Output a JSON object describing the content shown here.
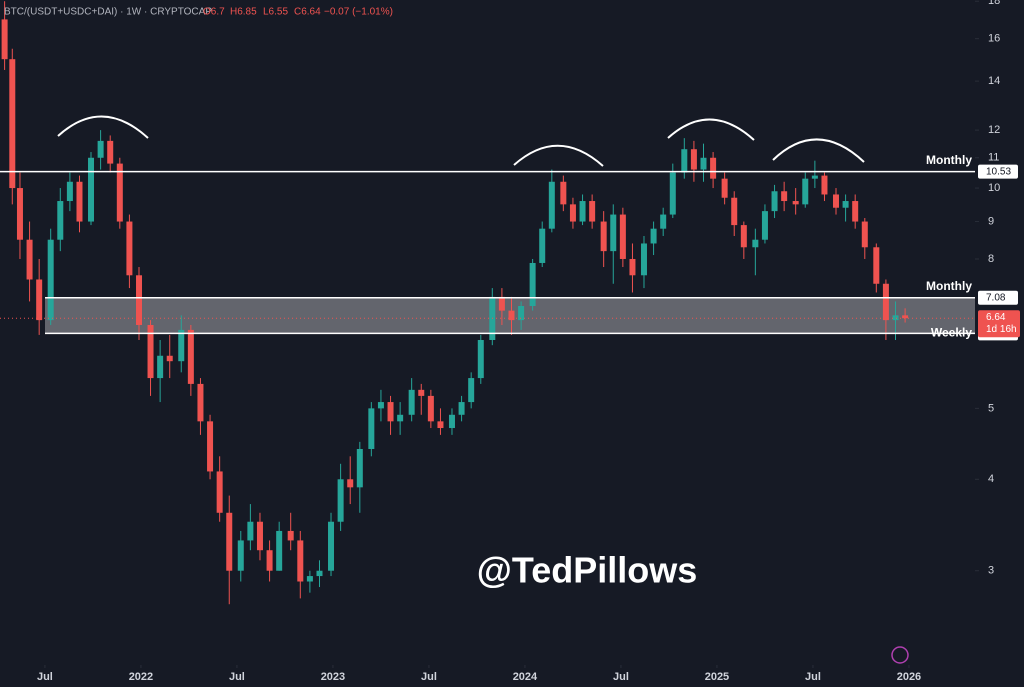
{
  "header": {
    "symbol": "BTC/(USDT+USDC+DAI) · 1W · CRYPTOCAP",
    "open": "O6.7",
    "high": "H6.85",
    "low": "L6.55",
    "close": "C6.64",
    "change": "−0.07 (−1.01%)"
  },
  "watermark": "@TedPillows",
  "chart_data": {
    "type": "candlestick",
    "log_scale": true,
    "up_color": "#26a69a",
    "down_color": "#ef5350",
    "x": [
      2021.29,
      2021.33,
      2021.37,
      2021.42,
      2021.47,
      2021.53,
      2021.58,
      2021.63,
      2021.68,
      2021.74,
      2021.79,
      2021.84,
      2021.89,
      2021.94,
      2021.99,
      2022.05,
      2022.1,
      2022.15,
      2022.21,
      2022.26,
      2022.31,
      2022.36,
      2022.41,
      2022.46,
      2022.52,
      2022.57,
      2022.62,
      2022.67,
      2022.72,
      2022.78,
      2022.83,
      2022.88,
      2022.93,
      2022.99,
      2023.04,
      2023.09,
      2023.14,
      2023.2,
      2023.25,
      2023.3,
      2023.35,
      2023.41,
      2023.46,
      2023.51,
      2023.56,
      2023.62,
      2023.67,
      2023.72,
      2023.77,
      2023.83,
      2023.88,
      2023.93,
      2023.98,
      2024.04,
      2024.09,
      2024.14,
      2024.2,
      2024.25,
      2024.3,
      2024.35,
      2024.41,
      2024.46,
      2024.51,
      2024.56,
      2024.62,
      2024.67,
      2024.72,
      2024.77,
      2024.83,
      2024.88,
      2024.93,
      2024.98,
      2025.04,
      2025.09,
      2025.14,
      2025.2,
      2025.25,
      2025.3,
      2025.35,
      2025.41,
      2025.46,
      2025.51,
      2025.56,
      2025.62,
      2025.67,
      2025.72,
      2025.77,
      2025.83,
      2025.88,
      2025.93,
      2025.98
    ],
    "open": [
      17,
      15,
      10,
      8.5,
      7.5,
      6.6,
      8.5,
      9.6,
      10.2,
      9,
      11,
      11.6,
      10.8,
      9,
      7.6,
      6.5,
      5.5,
      5.9,
      5.8,
      6.4,
      5.4,
      4.8,
      4.1,
      3.6,
      3.0,
      3.3,
      3.5,
      3.2,
      3.0,
      3.4,
      3.3,
      2.9,
      2.95,
      3.0,
      3.5,
      4.0,
      3.9,
      4.4,
      5.0,
      5.1,
      4.8,
      4.9,
      5.3,
      5.2,
      4.8,
      4.7,
      4.9,
      5.1,
      5.5,
      6.2,
      7.1,
      6.8,
      6.6,
      6.9,
      7.9,
      8.8,
      10.2,
      9.5,
      9.0,
      9.6,
      9.0,
      8.2,
      9.2,
      8.0,
      7.6,
      8.4,
      8.8,
      9.2,
      10.5,
      11.3,
      10.6,
      11.0,
      10.3,
      9.7,
      8.9,
      8.3,
      8.5,
      9.3,
      9.9,
      9.6,
      9.5,
      10.3,
      10.4,
      9.8,
      9.4,
      9.6,
      9.0,
      8.3,
      7.4,
      6.6,
      6.7
    ],
    "high": [
      18,
      15.5,
      10.5,
      9,
      8,
      8.8,
      10,
      10.5,
      10.4,
      11.2,
      12,
      11.8,
      11,
      9.2,
      7.8,
      6.6,
      6.2,
      6.3,
      6.7,
      6.5,
      5.5,
      4.9,
      4.3,
      3.8,
      3.4,
      3.7,
      3.6,
      3.3,
      3.5,
      3.6,
      3.4,
      3.0,
      3.1,
      3.6,
      4.2,
      4.3,
      4.5,
      5.1,
      5.3,
      5.2,
      5.1,
      5.5,
      5.4,
      5.3,
      5.0,
      5.0,
      5.2,
      5.6,
      6.3,
      7.3,
      7.3,
      7.1,
      7.0,
      8.0,
      9.0,
      10.6,
      10.4,
      9.7,
      9.8,
      9.8,
      9.3,
      9.5,
      9.4,
      8.4,
      8.6,
      9.0,
      9.4,
      10.8,
      11.7,
      11.6,
      11.5,
      11.2,
      10.5,
      9.9,
      9.0,
      8.8,
      9.5,
      10.1,
      10.2,
      10.0,
      10.5,
      10.9,
      10.5,
      10.0,
      9.8,
      9.8,
      9.1,
      8.4,
      7.5,
      7.0,
      6.85
    ],
    "low": [
      14.5,
      9.5,
      8,
      7,
      6.3,
      6.5,
      8.2,
      9.3,
      8.7,
      8.9,
      10.6,
      10.5,
      8.8,
      7.3,
      6.2,
      5.2,
      5.1,
      5.5,
      5.6,
      5.2,
      4.6,
      4.0,
      3.5,
      2.7,
      2.9,
      3.2,
      3.1,
      2.9,
      3.0,
      3.2,
      2.75,
      2.8,
      2.85,
      2.95,
      3.4,
      3.7,
      3.6,
      4.3,
      4.8,
      4.6,
      4.6,
      4.8,
      4.9,
      4.7,
      4.6,
      4.6,
      4.8,
      5.0,
      5.4,
      6.1,
      6.5,
      6.3,
      6.4,
      6.8,
      7.8,
      8.7,
      9.3,
      8.8,
      8.9,
      8.8,
      7.8,
      7.4,
      7.8,
      7.2,
      7.3,
      8.1,
      8.6,
      9.1,
      10.3,
      10.2,
      10.2,
      10.0,
      9.5,
      8.6,
      8.0,
      7.6,
      8.4,
      9.1,
      9.3,
      9.2,
      9.4,
      10.0,
      9.6,
      9.2,
      9.0,
      8.8,
      8.0,
      7.2,
      6.2,
      6.2,
      6.55
    ],
    "close": [
      15,
      10,
      8.5,
      7.5,
      6.6,
      8.5,
      9.6,
      10.2,
      9,
      11,
      11.6,
      10.8,
      9,
      7.6,
      6.5,
      5.5,
      5.9,
      5.8,
      6.4,
      5.4,
      4.8,
      4.1,
      3.6,
      3.0,
      3.3,
      3.5,
      3.2,
      3.0,
      3.4,
      3.3,
      2.9,
      2.95,
      3.0,
      3.5,
      4.0,
      3.9,
      4.4,
      5.0,
      5.1,
      4.8,
      4.9,
      5.3,
      5.2,
      4.8,
      4.7,
      4.9,
      5.1,
      5.5,
      6.2,
      7.1,
      6.8,
      6.6,
      6.9,
      7.9,
      8.8,
      10.2,
      9.5,
      9.0,
      9.6,
      9.0,
      8.2,
      9.2,
      8.0,
      7.6,
      8.4,
      8.8,
      9.2,
      10.5,
      11.3,
      10.6,
      11.0,
      10.3,
      9.7,
      8.9,
      8.3,
      8.5,
      9.3,
      9.9,
      9.6,
      9.5,
      10.3,
      10.4,
      9.8,
      9.4,
      9.6,
      9.0,
      8.3,
      7.4,
      6.6,
      6.7,
      6.64
    ],
    "countdown": "1d 16h",
    "xlim": [
      2021.266,
      2026.344
    ],
    "ylim": [
      2.23,
      18.07
    ],
    "xticks": [
      {
        "value": 2021.5,
        "label": "Jul"
      },
      2022,
      {
        "value": 2022.5,
        "label": "Jul"
      },
      2023,
      {
        "value": 2023.5,
        "label": "Jul"
      },
      2024,
      {
        "value": 2024.5,
        "label": "Jul"
      },
      2025,
      {
        "value": 2025.5,
        "label": "Jul"
      },
      2026
    ],
    "yticks": [
      3,
      4,
      5,
      8,
      9,
      10,
      11,
      12,
      14,
      16,
      18
    ],
    "levels": [
      {
        "label": "Monthly",
        "value": 10.53
      },
      {
        "label": "Monthly",
        "value": 7.08
      },
      {
        "label": "Weekly",
        "value": 6.33
      }
    ],
    "zone_color": "#7d7f86"
  }
}
